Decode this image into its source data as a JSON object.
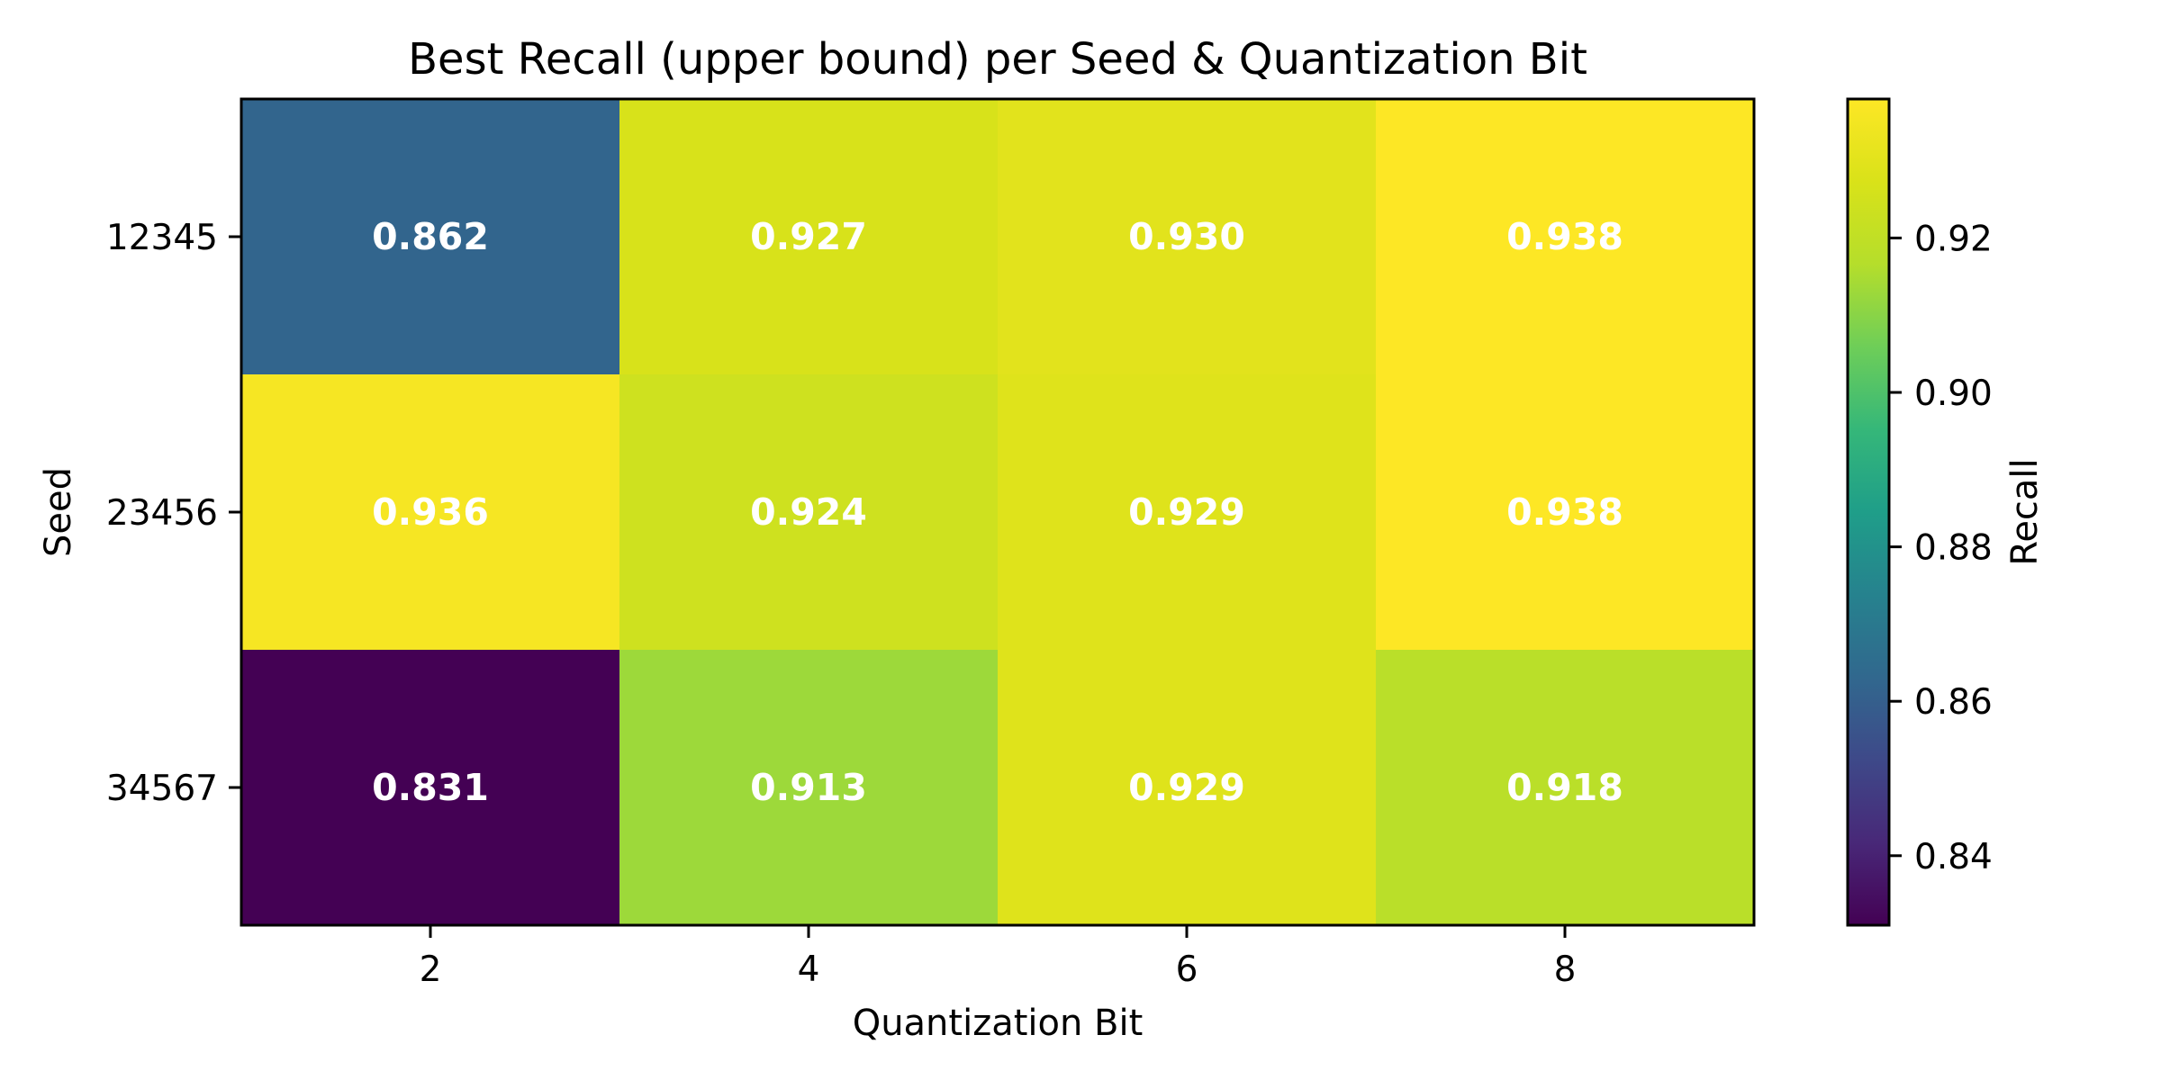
{
  "chart_data": {
    "type": "heatmap",
    "title": "Best Recall (upper bound) per Seed & Quantization Bit",
    "xlabel": "Quantization Bit",
    "ylabel": "Seed",
    "x_categories": [
      "2",
      "4",
      "6",
      "8"
    ],
    "y_categories": [
      "12345",
      "23456",
      "34567"
    ],
    "values": [
      [
        0.862,
        0.927,
        0.93,
        0.938
      ],
      [
        0.936,
        0.924,
        0.929,
        0.938
      ],
      [
        0.831,
        0.913,
        0.929,
        0.918
      ]
    ],
    "value_labels": [
      [
        "0.862",
        "0.927",
        "0.930",
        "0.938"
      ],
      [
        "0.936",
        "0.924",
        "0.929",
        "0.938"
      ],
      [
        "0.831",
        "0.913",
        "0.929",
        "0.918"
      ]
    ],
    "colormap": "viridis",
    "colorbar": {
      "label": "Recall",
      "range": [
        0.831,
        0.938
      ],
      "ticks": [
        0.84,
        0.86,
        0.88,
        0.9,
        0.92
      ],
      "tick_labels": [
        "0.84",
        "0.86",
        "0.88",
        "0.90",
        "0.92"
      ]
    },
    "grid": false,
    "legend": "none"
  }
}
